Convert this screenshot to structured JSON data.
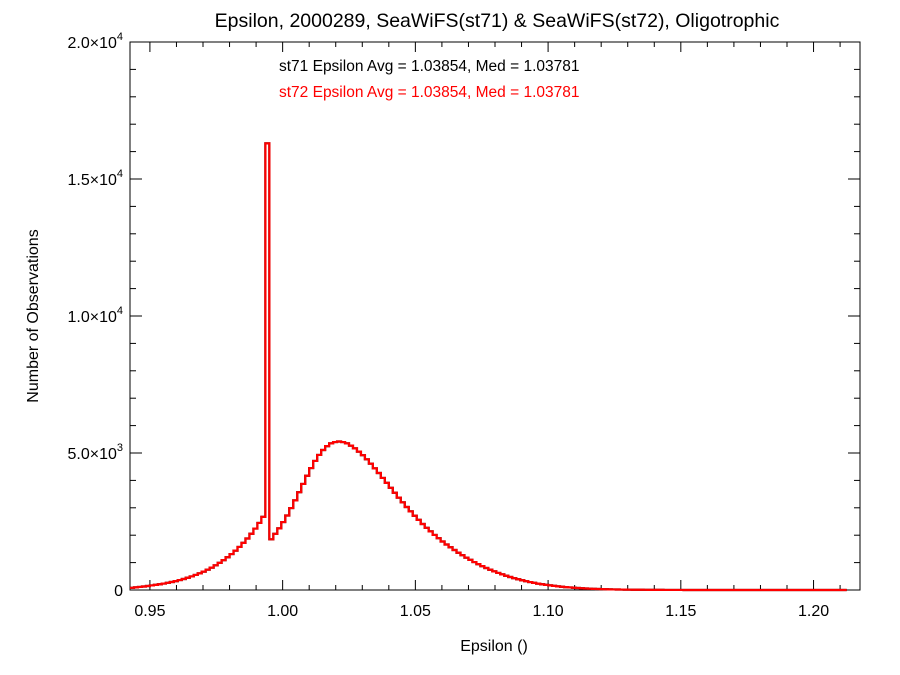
{
  "chart_data": {
    "type": "histogram",
    "title": "Epsilon, 2000289, SeaWiFS(st71) & SeaWiFS(st72), Oligotrophic",
    "xlabel": "Epsilon ()",
    "ylabel": "Number of Observations",
    "xlim": [
      0.9425,
      1.2175
    ],
    "ylim": [
      0,
      20000
    ],
    "x_ticks": [
      {
        "value": 0.95,
        "label": "0.95"
      },
      {
        "value": 1.0,
        "label": "1.00"
      },
      {
        "value": 1.05,
        "label": "1.05"
      },
      {
        "value": 1.1,
        "label": "1.10"
      },
      {
        "value": 1.15,
        "label": "1.15"
      },
      {
        "value": 1.2,
        "label": "1.20"
      }
    ],
    "y_ticks": [
      {
        "value": 0,
        "mant": "0",
        "exp": ""
      },
      {
        "value": 5000,
        "mant": "5.0×10",
        "exp": "3"
      },
      {
        "value": 10000,
        "mant": "1.0×10",
        "exp": "4"
      },
      {
        "value": 15000,
        "mant": "1.5×10",
        "exp": "4"
      },
      {
        "value": 20000,
        "mant": "2.0×10",
        "exp": "4"
      }
    ],
    "annotations": [
      {
        "text": "st71 Epsilon Avg = 1.03854, Med = 1.03781",
        "color": "#000000"
      },
      {
        "text": "st72 Epsilon Avg = 1.03854, Med = 1.03781",
        "color": "#ff0000"
      }
    ],
    "bin_width": 0.0015,
    "series": [
      {
        "name": "st71",
        "color": "#000000",
        "x_start": 0.9425,
        "values": [
          80,
          96,
          112,
          128,
          146,
          166,
          187,
          210,
          235,
          262,
          292,
          325,
          362,
          402,
          446,
          495,
          549,
          608,
          672,
          742,
          818,
          901,
          991,
          1089,
          1195,
          1311,
          1436,
          1572,
          1720,
          1880,
          2054,
          2243,
          2447,
          2668,
          16300,
          1850,
          2050,
          2250,
          2480,
          2720,
          2990,
          3270,
          3570,
          3870,
          4170,
          4450,
          4710,
          4930,
          5110,
          5250,
          5350,
          5400,
          5420,
          5400,
          5350,
          5270,
          5170,
          5050,
          4920,
          4770,
          4610,
          4440,
          4270,
          4090,
          3910,
          3730,
          3550,
          3370,
          3200,
          3030,
          2870,
          2710,
          2560,
          2410,
          2270,
          2140,
          2010,
          1890,
          1770,
          1660,
          1560,
          1460,
          1360,
          1270,
          1180,
          1100,
          1020,
          945,
          872,
          803,
          739,
          679,
          622,
          569,
          520,
          474,
          431,
          392,
          355,
          321,
          290,
          261,
          234,
          210,
          188,
          168,
          150,
          133,
          118,
          105,
          93,
          82,
          72,
          63,
          55,
          48,
          42,
          37,
          32,
          28,
          24,
          21,
          18,
          16,
          14,
          12,
          10,
          9,
          8,
          7,
          6,
          5,
          4,
          4,
          3,
          3,
          2,
          2,
          2,
          1,
          1,
          1,
          1,
          1,
          1,
          0,
          0,
          0,
          0,
          0,
          0,
          0,
          0,
          0,
          0,
          0,
          0,
          0,
          0,
          0,
          0,
          0,
          0,
          0,
          0,
          0,
          0,
          0,
          0,
          0,
          0,
          0,
          0,
          0,
          0,
          0,
          0,
          0,
          0,
          0
        ]
      },
      {
        "name": "st72",
        "color": "#ff0000",
        "x_start": 0.9425,
        "values": [
          80,
          96,
          112,
          128,
          146,
          166,
          187,
          210,
          235,
          262,
          292,
          325,
          362,
          402,
          446,
          495,
          549,
          608,
          672,
          742,
          818,
          901,
          991,
          1089,
          1195,
          1311,
          1436,
          1572,
          1720,
          1880,
          2054,
          2243,
          2447,
          2668,
          16300,
          1850,
          2050,
          2250,
          2480,
          2720,
          2990,
          3270,
          3570,
          3870,
          4170,
          4450,
          4710,
          4930,
          5110,
          5250,
          5350,
          5400,
          5420,
          5400,
          5350,
          5270,
          5170,
          5050,
          4920,
          4770,
          4610,
          4440,
          4270,
          4090,
          3910,
          3730,
          3550,
          3370,
          3200,
          3030,
          2870,
          2710,
          2560,
          2410,
          2270,
          2140,
          2010,
          1890,
          1770,
          1660,
          1560,
          1460,
          1360,
          1270,
          1180,
          1100,
          1020,
          945,
          872,
          803,
          739,
          679,
          622,
          569,
          520,
          474,
          431,
          392,
          355,
          321,
          290,
          261,
          234,
          210,
          188,
          168,
          150,
          133,
          118,
          105,
          93,
          82,
          72,
          63,
          55,
          48,
          42,
          37,
          32,
          28,
          24,
          21,
          18,
          16,
          14,
          12,
          10,
          9,
          8,
          7,
          6,
          5,
          4,
          4,
          3,
          3,
          2,
          2,
          2,
          1,
          1,
          1,
          1,
          1,
          1,
          0,
          0,
          0,
          0,
          0,
          0,
          0,
          0,
          0,
          0,
          0,
          0,
          0,
          0,
          0,
          0,
          0,
          0,
          0,
          0,
          0,
          0,
          0,
          0,
          0,
          0,
          0,
          0,
          0,
          0,
          0,
          0,
          0,
          0,
          0
        ]
      }
    ]
  }
}
